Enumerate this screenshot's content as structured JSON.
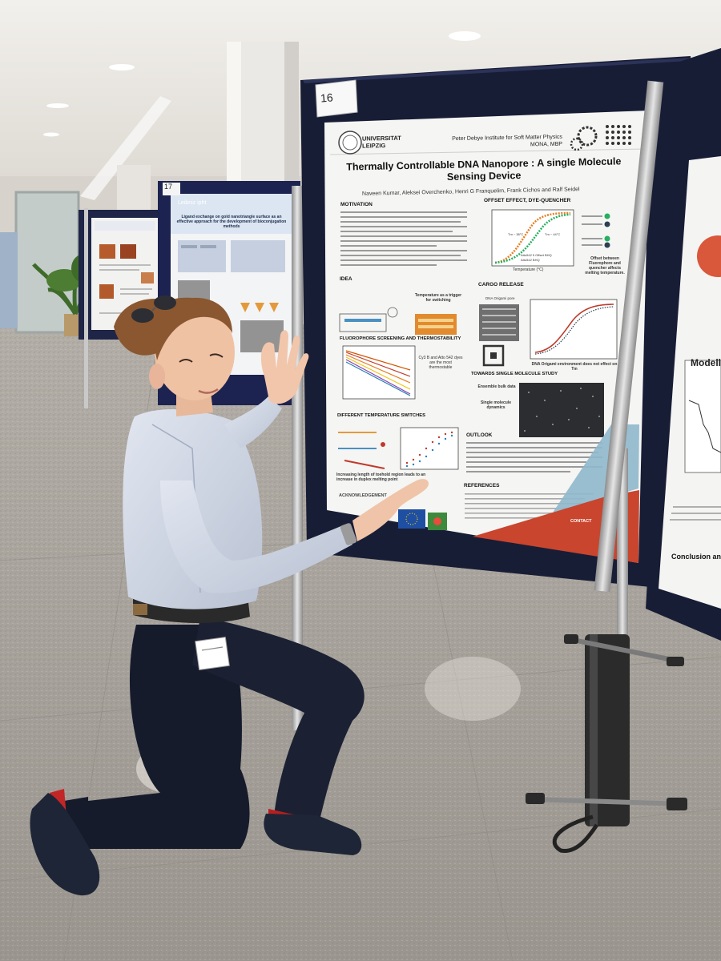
{
  "poster": {
    "board_number": "16",
    "neighbor_board_number": "17",
    "university": "UNIVERSITAT LEIPZIG",
    "institute": "Peter Debye Institute for Soft Matter Physics",
    "institute_sub": "MONA, MBP",
    "title": "Thermally Controllable DNA Nanopore : A single Molecule Sensing Device",
    "authors": "Naveen Kumar, Aleksei Overchenko, Henri G Franquelim, Frank Cichos and Ralf Seidel",
    "sections": {
      "motivation": "MOTIVATION",
      "idea": "IDEA",
      "offset": "OFFSET EFFECT, DYE-QUENCHER",
      "cargo": "CARGO RELEASE",
      "fluorophore": "FLUOROPHORE SCREENING AND THERMOSTABILITY",
      "towards": "TOWARDS SINGLE MOLECULE STUDY",
      "switches": "DIFFERENT TEMPERATURE SWITCHES",
      "outlook": "OUTLOOK",
      "references": "REFERENCES",
      "acknowledgement": "ACKNOWLEDGEMENT",
      "contact": "CONTACT"
    },
    "notes": {
      "trigger": "Temperature as a trigger for switching",
      "dyes": "Cy3 B and Atto 542 dyes are the most thermostable",
      "offset_note": "Offset between Fluorophore and quencher affects melting temperature.",
      "origami_note": "DNA Origami environment does not effect on Tm",
      "ensemble": "Ensemble bulk data",
      "single": "Single molecule dynamics",
      "toehold": "Increasing length of toehold region leads to an increase in duplex melting point",
      "xlabel": "Temperature (°C)",
      "legend_a": "Atto542 5 Offset BHQ",
      "legend_b": "Atto542 BHQ",
      "tm_label": "Tm ~ 38°C",
      "tm_label2": "Tm ~ 44°C",
      "cargo_chart_title": "DNA Origami pore"
    }
  },
  "side_poster": {
    "title": "Ligand exchange on gold nanotriangle surface as an effective approach for the development of bioconjugation methods",
    "logo": "Leibniz ipht"
  },
  "right_poster": {
    "modelling": "Modelling",
    "conclusion": "Conclusion and future"
  },
  "colors": {
    "board_navy": "#1b2240",
    "poster_white": "#f4f4f2",
    "contact_red": "#c9452e",
    "floor": "#b9b4ad"
  }
}
